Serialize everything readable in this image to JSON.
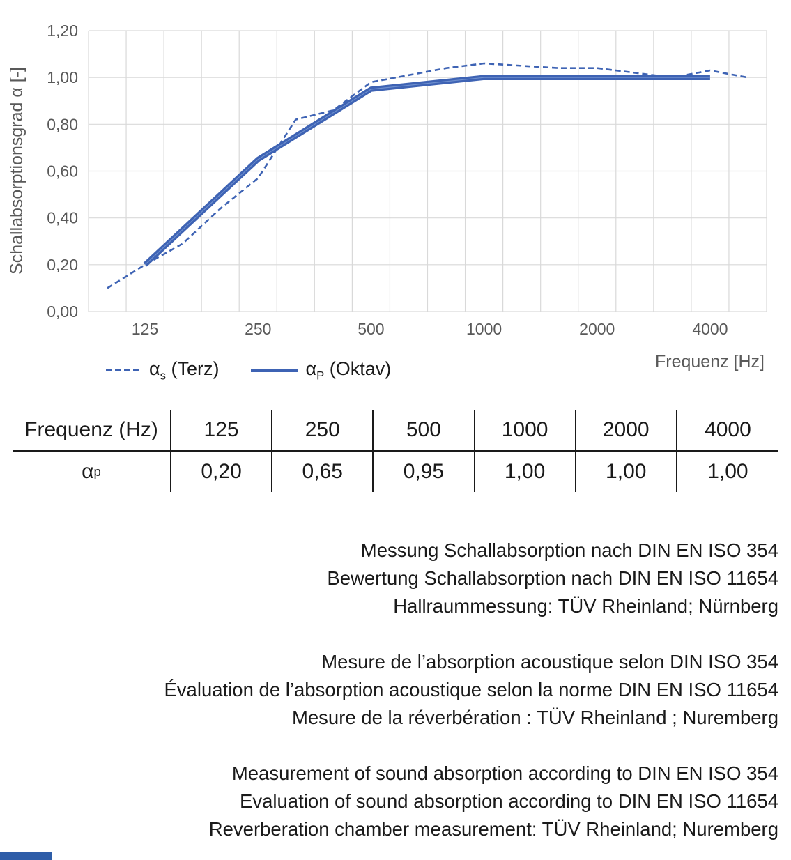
{
  "chart": {
    "y_axis_title": "Schallabsorptionsgrad α [-]",
    "x_axis_title": "Frequenz [Hz]",
    "y_ticks": [
      "1,20",
      "1,00",
      "0,80",
      "0,60",
      "0,40",
      "0,20",
      "0,00"
    ],
    "x_ticks": [
      "125",
      "250",
      "500",
      "1000",
      "2000",
      "4000"
    ],
    "legend": [
      {
        "symbol": "dashed",
        "alpha": "α",
        "sub": "s",
        "rest": " (Terz)"
      },
      {
        "symbol": "solid",
        "alpha": "α",
        "sub": "P",
        "rest": " (Oktav)"
      }
    ]
  },
  "chart_data": {
    "type": "line",
    "x_scale": "log-octave-bands",
    "categories": [
      100,
      125,
      160,
      200,
      250,
      315,
      400,
      500,
      630,
      800,
      1000,
      1250,
      1600,
      2000,
      2500,
      3150,
      4000,
      5000
    ],
    "series": [
      {
        "name": "αs (Terz)",
        "style": "dashed",
        "x": [
          100,
          125,
          160,
          200,
          250,
          315,
          400,
          500,
          630,
          800,
          1000,
          1250,
          1600,
          2000,
          2500,
          3150,
          4000,
          5000
        ],
        "values": [
          0.1,
          0.2,
          0.29,
          0.44,
          0.57,
          0.82,
          0.86,
          0.98,
          1.01,
          1.04,
          1.06,
          1.05,
          1.04,
          1.04,
          1.02,
          1.0,
          1.03,
          1.0
        ]
      },
      {
        "name": "αp (Oktav)",
        "style": "solid",
        "x": [
          125,
          250,
          500,
          1000,
          2000,
          4000
        ],
        "values": [
          0.2,
          0.65,
          0.95,
          1.0,
          1.0,
          1.0
        ]
      }
    ],
    "title": "",
    "xlabel": "Frequenz [Hz]",
    "ylabel": "Schallabsorptionsgrad α [-]",
    "ylim": [
      0,
      1.2
    ],
    "grid": true,
    "legend_position": "bottom-left"
  },
  "table": {
    "header": [
      "Frequenz (Hz)",
      "125",
      "250",
      "500",
      "1000",
      "2000",
      "4000"
    ],
    "row_label": {
      "alpha": "α",
      "sub": "p"
    },
    "values": [
      "0,20",
      "0,65",
      "0,95",
      "1,00",
      "1,00",
      "1,00"
    ]
  },
  "notes": {
    "de": [
      "Messung Schallabsorption nach DIN EN ISO 354",
      "Bewertung Schallabsorption nach DIN EN ISO 11654",
      "Hallraummessung: TÜV Rheinland; Nürnberg"
    ],
    "fr": [
      "Mesure de l’absorption acoustique selon DIN ISO 354",
      "Évaluation de l’absorption acoustique selon la norme DIN EN ISO 11654",
      "Mesure de la réverbération : TÜV Rheinland ; Nuremberg"
    ],
    "en": [
      "Measurement of sound absorption according to DIN EN ISO 354",
      "Evaluation of sound absorption according to DIN EN ISO 11654",
      "Reverberation chamber measurement: TÜV Rheinland; Nuremberg"
    ]
  },
  "colors": {
    "line_blue": "#3E63B4",
    "line_seam": "#6E8FCE",
    "grid_gray": "#D9D9D9",
    "axis_gray": "#BFBFBF",
    "label_gray": "#595959",
    "text_black": "#1A1A1A",
    "footer_blue": "#2E5DA8"
  }
}
